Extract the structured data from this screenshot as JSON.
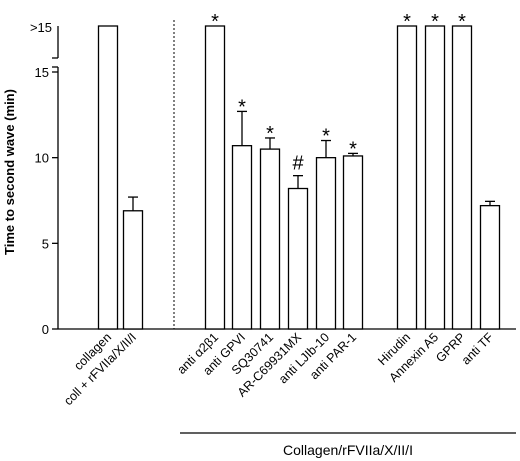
{
  "chart_data": {
    "type": "bar",
    "ylabel": "Time to second wave (min)",
    "ylim": [
      0,
      15
    ],
    "yticks": [
      0,
      5,
      10,
      15
    ],
    "ybreak_label": ">15",
    "group_label": "Collagen/rFVIIa/X/II/I",
    "categories": [
      "collagen",
      "coll + rFVIIa/X/II/I",
      "anti α2β1",
      "anti GPVI",
      "SQ30741",
      "AR-C69931MX",
      "anti LJIb-10",
      "anti PAR-1",
      "Hirudin",
      "Annexin A5",
      "GPRP",
      "anti TF"
    ],
    "values": [
      ">15",
      6.9,
      ">15",
      10.7,
      10.5,
      8.2,
      10.0,
      10.1,
      ">15",
      ">15",
      ">15",
      7.2
    ],
    "errors": [
      null,
      0.8,
      null,
      2.0,
      0.65,
      0.75,
      1.0,
      0.15,
      null,
      null,
      null,
      0.25
    ],
    "significance": [
      "",
      "",
      "*",
      "*",
      "*",
      "#",
      "*",
      "*",
      "*",
      "*",
      "*",
      ""
    ]
  }
}
